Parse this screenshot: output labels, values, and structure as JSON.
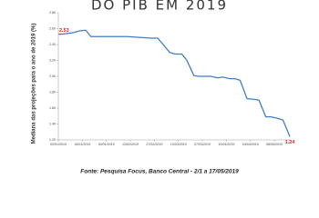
{
  "chart_data": {
    "type": "line",
    "title": "DO PIB EM 2019",
    "y_label": "Mediana das projeções para o ano de 2019 (%)",
    "source": "Fonte: Pesquisa Focus, Banco Central - 2/1 a 17/05/2019",
    "x": [
      "02/01/2019",
      "04/01/2019",
      "11/01/2019",
      "14/01/2019",
      "18/01/2019",
      "21/01/2019",
      "28/01/2019",
      "04/02/2019",
      "11/02/2019",
      "18/02/2019",
      "25/02/2019",
      "01/03/2019",
      "08/03/2019",
      "11/03/2019",
      "15/03/2019",
      "18/03/2019",
      "22/03/2019",
      "25/03/2019",
      "01/04/2019",
      "05/04/2019",
      "08/04/2019",
      "12/04/2019",
      "15/04/2019",
      "18/04/2019",
      "22/04/2019",
      "26/04/2019",
      "29/04/2019",
      "03/05/2019",
      "06/05/2019",
      "10/05/2019",
      "13/05/2019",
      "17/05/2019"
    ],
    "series": [
      {
        "name": "Mediana",
        "color": "#3f7fc5",
        "values": [
          2.53,
          2.53,
          2.55,
          2.57,
          2.58,
          2.5,
          2.5,
          2.5,
          2.5,
          2.49,
          2.48,
          2.48,
          2.3,
          2.28,
          2.28,
          2.2,
          2.01,
          2.0,
          2.0,
          1.98,
          1.99,
          1.97,
          1.97,
          1.95,
          1.72,
          1.71,
          1.7,
          1.49,
          1.49,
          1.47,
          1.45,
          1.24
        ]
      }
    ],
    "label_color": "#e02020",
    "xlim": [
      "02/01/2019",
      "17/05/2019"
    ],
    "xticks": [
      "02/01/2019",
      "16/01/2019",
      "30/01/2019",
      "13/02/2019",
      "27/02/2019",
      "13/03/2019",
      "27/03/2019",
      "10/04/2019",
      "24/04/2019",
      "08/05/2019"
    ],
    "ylim": [
      1.2,
      2.8
    ],
    "yticks": [
      {
        "value": 1.2,
        "label": "1.20"
      },
      {
        "value": 1.4,
        "label": "1.40"
      },
      {
        "value": 1.6,
        "label": "1.60"
      },
      {
        "value": 1.8,
        "label": "1.80"
      },
      {
        "value": 2,
        "label": "2.00"
      },
      {
        "value": 2.2,
        "label": "2.20"
      },
      {
        "value": 2.4,
        "label": "2.40"
      },
      {
        "value": 2.6,
        "label": "2.60"
      },
      {
        "value": 2.8,
        "label": "2.80"
      }
    ]
  }
}
